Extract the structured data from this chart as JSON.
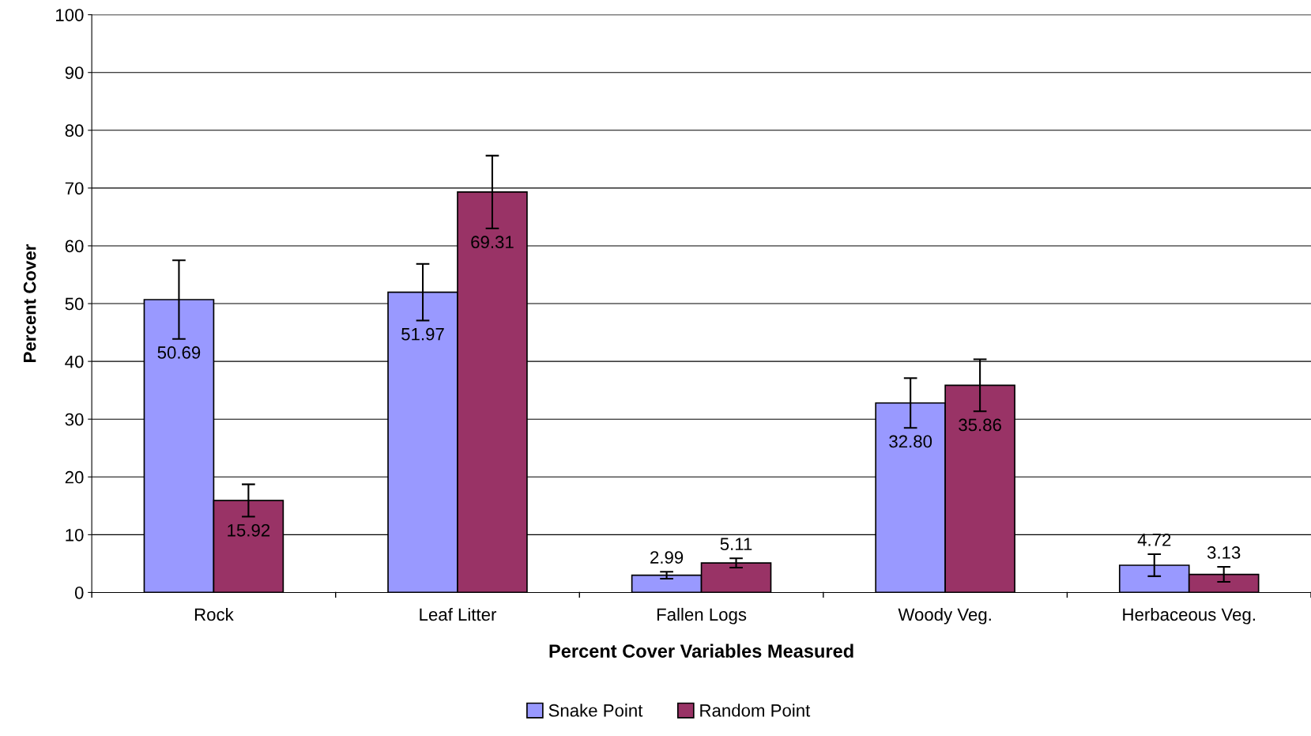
{
  "chart_data": {
    "type": "bar",
    "xlabel": "Percent Cover Variables Measured",
    "ylabel": "Percent Cover",
    "categories": [
      "Rock",
      "Leaf Litter",
      "Fallen Logs",
      "Woody Veg.",
      "Herbaceous Veg."
    ],
    "series": [
      {
        "name": "Snake Point",
        "color": "#9999ff",
        "values": [
          50.69,
          51.97,
          2.99,
          32.8,
          4.72
        ],
        "errors": [
          6.8,
          4.9,
          0.6,
          4.3,
          1.9
        ],
        "value_labels": [
          "50.69",
          "51.97",
          "2.99",
          "32.80",
          "4.72"
        ]
      },
      {
        "name": "Random Point",
        "color": "#993366",
        "values": [
          15.92,
          69.31,
          5.11,
          35.86,
          3.13
        ],
        "errors": [
          2.8,
          6.3,
          0.8,
          4.5,
          1.3
        ],
        "value_labels": [
          "15.92",
          "69.31",
          "5.11",
          "35.86",
          "3.13"
        ]
      }
    ],
    "ylim": [
      0,
      100
    ],
    "yticks": [
      0,
      10,
      20,
      30,
      40,
      50,
      60,
      70,
      80,
      90,
      100
    ],
    "grid": "y",
    "legend": "bottom"
  }
}
